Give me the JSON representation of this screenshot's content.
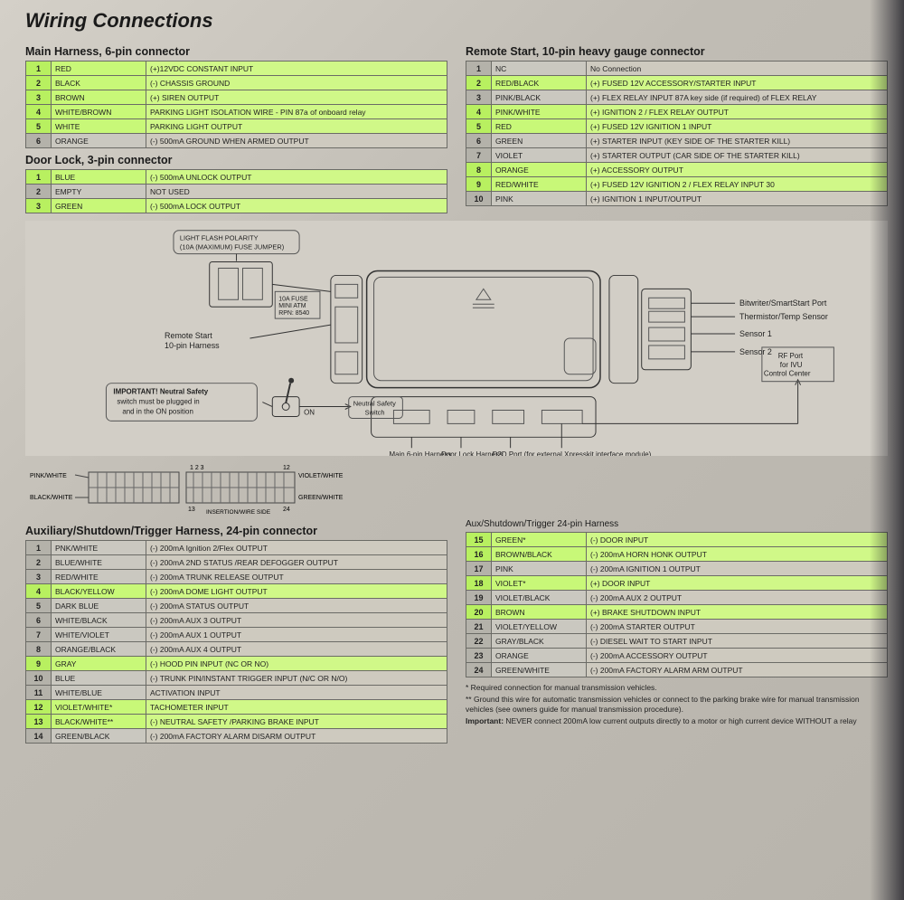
{
  "title": "Wiring Connections",
  "colors": {
    "highlight_num": "#b8f060",
    "highlight_cell": "#c8f878",
    "highlight_desc": "#d0f888",
    "num_bg": "#b4b2aa",
    "cell_bg": "#cac8c0",
    "desc_bg": "#cecabf",
    "border": "#6b6b66",
    "page_bg": "#c8c6c0",
    "text": "#222222"
  },
  "main_harness": {
    "heading": "Main Harness, 6-pin connector",
    "rows": [
      {
        "n": "1",
        "color": "RED",
        "desc": "(+)12VDC CONSTANT INPUT",
        "hl": true
      },
      {
        "n": "2",
        "color": "BLACK",
        "desc": "(-) CHASSIS GROUND",
        "hl": true
      },
      {
        "n": "3",
        "color": "BROWN",
        "desc": "(+) SIREN OUTPUT",
        "hl": true
      },
      {
        "n": "4",
        "color": "WHITE/BROWN",
        "desc": "PARKING LIGHT  ISOLATION WIRE - PIN 87a of onboard relay",
        "hl": true
      },
      {
        "n": "5",
        "color": "WHITE",
        "desc": "PARKING LIGHT OUTPUT",
        "hl": true
      },
      {
        "n": "6",
        "color": "ORANGE",
        "desc": "(-) 500mA GROUND WHEN ARMED OUTPUT",
        "hl": false
      }
    ]
  },
  "door_lock": {
    "heading": "Door Lock, 3-pin connector",
    "rows": [
      {
        "n": "1",
        "color": "BLUE",
        "desc": "(-) 500mA UNLOCK OUTPUT",
        "hl": true
      },
      {
        "n": "2",
        "color": "EMPTY",
        "desc": "NOT USED",
        "hl": false
      },
      {
        "n": "3",
        "color": "GREEN",
        "desc": "(-) 500mA LOCK OUTPUT",
        "hl": true
      }
    ]
  },
  "remote_start": {
    "heading": "Remote Start, 10-pin heavy gauge connector",
    "rows": [
      {
        "n": "1",
        "color": "NC",
        "desc": "No Connection",
        "hl": false
      },
      {
        "n": "2",
        "color": "RED/BLACK",
        "desc": "(+) FUSED 12V ACCESSORY/STARTER INPUT",
        "hl": true
      },
      {
        "n": "3",
        "color": "PINK/BLACK",
        "desc": "(+) FLEX RELAY INPUT 87A key side (if required) of FLEX RELAY",
        "hl": false
      },
      {
        "n": "4",
        "color": "PINK/WHITE",
        "desc": "(+) IGNITION 2 / FLEX RELAY OUTPUT",
        "hl": true
      },
      {
        "n": "5",
        "color": "RED",
        "desc": "(+) FUSED 12V IGNITION 1 INPUT",
        "hl": true
      },
      {
        "n": "6",
        "color": "GREEN",
        "desc": "(+) STARTER INPUT (KEY SIDE OF THE STARTER KILL)",
        "hl": false
      },
      {
        "n": "7",
        "color": "VIOLET",
        "desc": "(+) STARTER OUTPUT  (CAR SIDE OF THE STARTER KILL)",
        "hl": false
      },
      {
        "n": "8",
        "color": "ORANGE",
        "desc": "(+) ACCESSORY OUTPUT",
        "hl": true
      },
      {
        "n": "9",
        "color": "RED/WHITE",
        "desc": "(+) FUSED 12V IGNITION 2 / FLEX RELAY INPUT 30",
        "hl": true
      },
      {
        "n": "10",
        "color": "PINK",
        "desc": "(+) IGNITION 1 INPUT/OUTPUT",
        "hl": false
      }
    ]
  },
  "diagram": {
    "fuse_label": "LIGHT FLASH POLARITY\n(10A (MAXIMUM) FUSE JUMPER)",
    "fuse_small": "10A FUSE\nMINI ATM\nRPN: 8540",
    "rs_harness": "Remote Start\n10-pin Harness",
    "important": "IMPORTANT! Neutral Safety\nswitch must be plugged in\nand in the ON position",
    "on_label": "ON",
    "neutral_switch": "Neutral Safety\nSwitch",
    "main6": "Main 6-pin\nHarness",
    "doorlock": "Door Lock\nHarness",
    "d2d": "D2D Port (for external\nXpresskit interface module)",
    "rfport": "RF Port\nfor IVU\nControl Center",
    "bitwriter": "Bitwriter/SmartStart Port",
    "thermistor": "Thermistor/Temp Sensor",
    "sensor1": "Sensor 1",
    "sensor2": "Sensor 2",
    "auxlabel": "Aux/Shutdown/Trigger 24-pin Harness"
  },
  "connector_labels": {
    "pw": "PINK/WHITE",
    "bw": "BLACK/WHITE",
    "n123": "1  2  3",
    "n12": "12",
    "n13": "13",
    "n24": "24",
    "vw": "VIOLET/WHITE",
    "gw": "GREEN/WHITE",
    "ins": "INSERTION/WIRE SIDE"
  },
  "aux_heading": "Auxiliary/Shutdown/Trigger Harness, 24-pin connector",
  "aux_left": [
    {
      "n": "1",
      "color": "PNK/WHITE",
      "desc": "(-) 200mA Ignition 2/Flex  OUTPUT",
      "hl": false
    },
    {
      "n": "2",
      "color": "BLUE/WHITE",
      "desc": "(-) 200mA 2ND STATUS /REAR DEFOGGER OUTPUT",
      "hl": false
    },
    {
      "n": "3",
      "color": "RED/WHITE",
      "desc": "(-) 200mA TRUNK RELEASE OUTPUT",
      "hl": false
    },
    {
      "n": "4",
      "color": "BLACK/YELLOW",
      "desc": "(-) 200mA DOME LIGHT OUTPUT",
      "hl": true
    },
    {
      "n": "5",
      "color": "DARK BLUE",
      "desc": "(-) 200mA STATUS OUTPUT",
      "hl": false
    },
    {
      "n": "6",
      "color": "WHITE/BLACK",
      "desc": "(-) 200mA AUX 3 OUTPUT",
      "hl": false
    },
    {
      "n": "7",
      "color": "WHITE/VIOLET",
      "desc": "(-) 200mA AUX 1 OUTPUT",
      "hl": false
    },
    {
      "n": "8",
      "color": "ORANGE/BLACK",
      "desc": "(-) 200mA AUX 4 OUTPUT",
      "hl": false
    },
    {
      "n": "9",
      "color": "GRAY",
      "desc": "(-) HOOD PIN INPUT (NC OR NO)",
      "hl": true
    },
    {
      "n": "10",
      "color": "BLUE",
      "desc": "(-) TRUNK PIN/INSTANT TRIGGER INPUT (N/C OR N/O)",
      "hl": false
    },
    {
      "n": "11",
      "color": "WHITE/BLUE",
      "desc": "ACTIVATION INPUT",
      "hl": false
    },
    {
      "n": "12",
      "color": "VIOLET/WHITE*",
      "desc": "TACHOMETER INPUT",
      "hl": true
    },
    {
      "n": "13",
      "color": "BLACK/WHITE**",
      "desc": "(-) NEUTRAL SAFETY /PARKING BRAKE INPUT",
      "hl": true
    },
    {
      "n": "14",
      "color": "GREEN/BLACK",
      "desc": "(-) 200mA FACTORY ALARM DISARM OUTPUT",
      "hl": false
    }
  ],
  "aux_right": [
    {
      "n": "15",
      "color": "GREEN*",
      "desc": "(-) DOOR INPUT",
      "hl": true
    },
    {
      "n": "16",
      "color": "BROWN/BLACK",
      "desc": "(-) 200mA HORN HONK OUTPUT",
      "hl": true
    },
    {
      "n": "17",
      "color": "PINK",
      "desc": "(-) 200mA IGNITION 1 OUTPUT",
      "hl": false
    },
    {
      "n": "18",
      "color": "VIOLET*",
      "desc": "(+) DOOR INPUT",
      "hl": true
    },
    {
      "n": "19",
      "color": "VIOLET/BLACK",
      "desc": "(-) 200mA AUX 2 OUTPUT",
      "hl": false
    },
    {
      "n": "20",
      "color": "BROWN",
      "desc": "(+) BRAKE SHUTDOWN INPUT",
      "hl": true
    },
    {
      "n": "21",
      "color": "VIOLET/YELLOW",
      "desc": "(-) 200mA STARTER OUTPUT",
      "hl": false
    },
    {
      "n": "22",
      "color": "GRAY/BLACK",
      "desc": "(-) DIESEL WAIT TO START INPUT",
      "hl": false
    },
    {
      "n": "23",
      "color": "ORANGE",
      "desc": "(-) 200mA ACCESSORY OUTPUT",
      "hl": false
    },
    {
      "n": "24",
      "color": "GREEN/WHITE",
      "desc": "(-) 200mA FACTORY ALARM ARM OUTPUT",
      "hl": false
    }
  ],
  "footnotes": {
    "star": "*         Required connection for manual transmission vehicles.",
    "dstar": "**       Ground this wire for automatic transmission vehicles or connect to the parking brake wire for manual transmission vehicles (see owners guide for manual transmission procedure).",
    "important": "Important: NEVER connect 200mA low current outputs directly to a motor or high current device WITHOUT a relay"
  }
}
